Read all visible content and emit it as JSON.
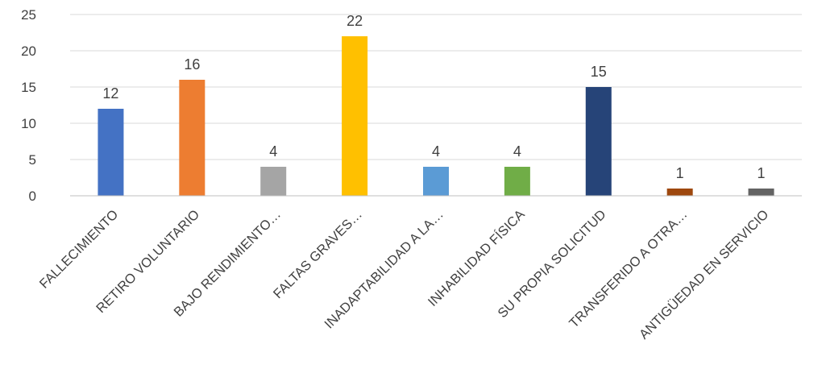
{
  "chart_data": {
    "type": "bar",
    "title": "",
    "xlabel": "",
    "ylabel": "",
    "categories": [
      "FALLECIMIENTO",
      "RETIRO VOLUNTARIO",
      "BAJO RENDIMIENTO…",
      "FALTAS GRAVES…",
      "INADAPTABILIDAD A LA…",
      "INHABILIDAD FÍSICA",
      "SU PROPIA SOLICITUD",
      "TRANSFERIDO A OTRA…",
      "ANTIGÜEDAD EN SERVICIO"
    ],
    "values": [
      12,
      16,
      4,
      22,
      4,
      4,
      15,
      1,
      1
    ],
    "colors": [
      "#4472c4",
      "#ed7d31",
      "#a5a5a5",
      "#ffc000",
      "#5b9bd5",
      "#70ad47",
      "#264478",
      "#9e480e",
      "#636363"
    ],
    "ylim": [
      0,
      25
    ],
    "yticks": [
      0,
      5,
      10,
      15,
      20,
      25
    ],
    "grid": true,
    "legend": "none",
    "data_labels": true
  }
}
